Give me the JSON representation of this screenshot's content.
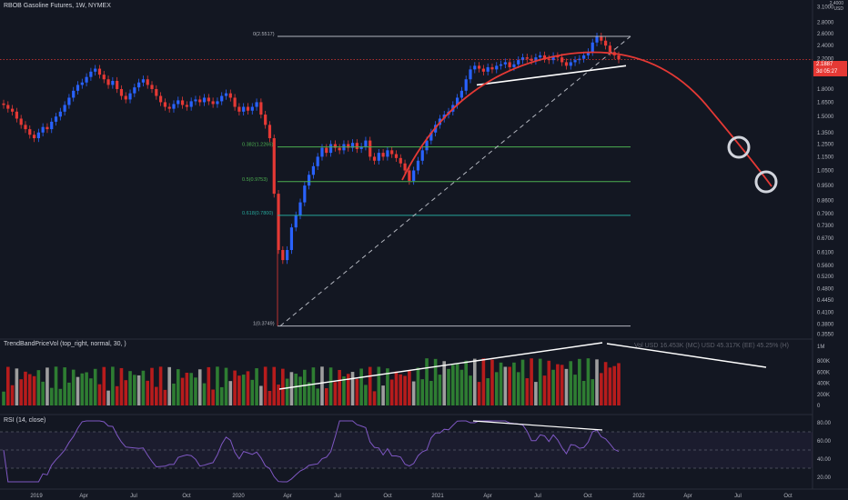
{
  "header": {
    "symbol_line": "RBOB Gasoline Futures, 1W, NYMEX",
    "unit_label_1": "2.4000",
    "unit_label_2": "USD"
  },
  "price_box": {
    "price": "2.1887",
    "countdown": "3d 05:27",
    "color": "#e53935"
  },
  "colors": {
    "up": "#2962ff",
    "down": "#e53935",
    "curve": "#e53935",
    "fib_green": "#4caf50",
    "fib_teal": "#26a69a",
    "rsi": "#7e57c2"
  },
  "chart_data": [
    {
      "type": "candlestick",
      "name": "price",
      "y_scale": "log",
      "ylim": [
        0.35,
        3.15
      ],
      "y_ticks": [
        "3.1000",
        "2.8000",
        "2.6000",
        "2.4000",
        "2.2000",
        "2.0000",
        "1.8000",
        "1.6500",
        "1.5000",
        "1.3500",
        "1.2500",
        "1.1500",
        "1.0500",
        "0.9500",
        "0.8600",
        "0.7900",
        "0.7300",
        "0.6700",
        "0.6100",
        "0.5600",
        "0.5200",
        "0.4800",
        "0.4450",
        "0.4100",
        "0.3800",
        "0.3550"
      ],
      "x_ticks": [
        "2019",
        "Apr",
        "Jul",
        "Oct",
        "2020",
        "Apr",
        "Jul",
        "Oct",
        "2021",
        "Apr",
        "Jul",
        "Oct",
        "2022",
        "Apr",
        "Jul",
        "Oct"
      ],
      "candles_close_approx": [
        1.62,
        1.58,
        1.55,
        1.48,
        1.42,
        1.38,
        1.33,
        1.3,
        1.35,
        1.4,
        1.38,
        1.45,
        1.5,
        1.55,
        1.62,
        1.7,
        1.78,
        1.85,
        1.88,
        1.95,
        2.02,
        2.06,
        1.98,
        1.92,
        1.85,
        1.9,
        1.8,
        1.72,
        1.68,
        1.75,
        1.82,
        1.88,
        1.92,
        1.85,
        1.8,
        1.72,
        1.65,
        1.6,
        1.58,
        1.63,
        1.67,
        1.62,
        1.6,
        1.66,
        1.68,
        1.65,
        1.7,
        1.66,
        1.63,
        1.66,
        1.72,
        1.75,
        1.7,
        1.6,
        1.55,
        1.6,
        1.56,
        1.6,
        1.65,
        1.52,
        1.42,
        1.3,
        0.9,
        0.62,
        0.58,
        0.62,
        0.72,
        0.78,
        0.85,
        0.95,
        1.02,
        1.08,
        1.15,
        1.22,
        1.18,
        1.25,
        1.22,
        1.2,
        1.25,
        1.22,
        1.26,
        1.21,
        1.23,
        1.28,
        1.15,
        1.12,
        1.18,
        1.15,
        1.2,
        1.17,
        1.14,
        1.1,
        1.05,
        0.98,
        1.05,
        1.12,
        1.2,
        1.28,
        1.35,
        1.42,
        1.48,
        1.52,
        1.55,
        1.62,
        1.7,
        1.78,
        1.92,
        2.05,
        2.1,
        2.06,
        2.02,
        2.08,
        2.05,
        2.1,
        2.12,
        2.15,
        2.08,
        2.12,
        2.18,
        2.22,
        2.2,
        2.17,
        2.22,
        2.25,
        2.2,
        2.18,
        2.24,
        2.22,
        2.15,
        2.1,
        2.15,
        2.18,
        2.2,
        2.25,
        2.3,
        2.45,
        2.55,
        2.48,
        2.4,
        2.3,
        2.25,
        2.19
      ],
      "fib_levels": [
        {
          "label": "0(2.5517)",
          "value": 2.5517
        },
        {
          "label": "0.382(1.2266)",
          "value": 1.2266
        },
        {
          "label": "0.5(0.9753)",
          "value": 0.9753
        },
        {
          "label": "0.618(0.7800)",
          "value": 0.78
        },
        {
          "label": "1(0.3749)",
          "value": 0.3749
        }
      ],
      "current_price": 2.1887
    },
    {
      "type": "bar",
      "name": "TrendBandPriceVol",
      "title": "TrendBandPriceVol (top_right, normal, 30, )",
      "legend": "Vol  USD 16.453K (MC)   USD 45.317K (EE)   45.25% (H)",
      "unit": "1M",
      "y_ticks": [
        "800K",
        "600K",
        "400K",
        "200K",
        "0"
      ],
      "ylim": [
        0,
        1000000
      ]
    },
    {
      "type": "line",
      "name": "RSI",
      "title": "RSI (14, close)",
      "y_ticks": [
        "80.00",
        "60.00",
        "40.00",
        "20.00"
      ],
      "ylim": [
        10,
        85
      ],
      "band": [
        30,
        70
      ]
    }
  ]
}
